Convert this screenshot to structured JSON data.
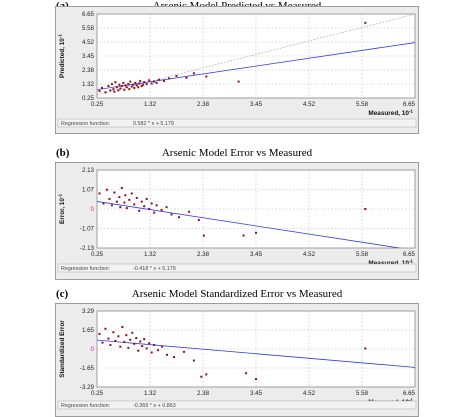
{
  "chart_data": [
    {
      "type": "scatter",
      "letter": "(a)",
      "title": "Arsenic Model Predicted vs Measured",
      "xlabel": "Measured, 10",
      "xlabel_exp": "-1",
      "ylabel": "Predicted, 10",
      "ylabel_exp": "-1",
      "xlim": [
        0.25,
        6.65
      ],
      "ylim": [
        0.0,
        6.65
      ],
      "xticks": [
        "0.25",
        "1.32",
        "2.38",
        "3.45",
        "4.52",
        "5.58",
        "6.65"
      ],
      "yticks": [
        "6.65",
        "5.58",
        "4.52",
        "3.45",
        "2.38",
        "1.32",
        "0.25"
      ],
      "regression_label": "Regression function:",
      "regression_formula": "0.582 * x + 5.179",
      "fit": {
        "slope": 0.582,
        "intercept": 0.518
      },
      "reference_line": true,
      "grid": true,
      "x": [
        0.3,
        0.35,
        0.42,
        0.48,
        0.52,
        0.55,
        0.58,
        0.6,
        0.62,
        0.65,
        0.68,
        0.7,
        0.72,
        0.75,
        0.78,
        0.8,
        0.82,
        0.85,
        0.88,
        0.9,
        0.92,
        0.95,
        0.98,
        1.0,
        1.02,
        1.05,
        1.08,
        1.1,
        1.12,
        1.15,
        1.18,
        1.2,
        1.25,
        1.3,
        1.35,
        1.4,
        1.45,
        1.5,
        1.6,
        1.7,
        1.85,
        2.05,
        2.2,
        2.45,
        3.1,
        5.65
      ],
      "y": [
        0.55,
        0.8,
        0.45,
        0.95,
        0.6,
        1.1,
        0.7,
        0.5,
        1.25,
        0.85,
        0.6,
        1.05,
        0.75,
        0.95,
        1.2,
        0.65,
        1.0,
        0.85,
        1.1,
        0.7,
        1.3,
        0.9,
        1.05,
        0.8,
        1.2,
        1.0,
        0.85,
        1.15,
        1.35,
        0.95,
        1.05,
        1.25,
        1.1,
        1.4,
        1.15,
        1.3,
        1.2,
        1.45,
        1.35,
        1.55,
        1.75,
        1.6,
        1.95,
        1.7,
        1.3,
        5.95
      ]
    },
    {
      "type": "scatter",
      "letter": "(b)",
      "title": "Arsenic Model Error vs Measured",
      "xlabel": "Measured, 10",
      "xlabel_exp": "-1",
      "ylabel": "Error, 10",
      "ylabel_exp": "-1",
      "xlim": [
        0.25,
        6.65
      ],
      "ylim": [
        -2.13,
        2.13
      ],
      "xticks": [
        "0.25",
        "1.32",
        "2.38",
        "3.45",
        "4.52",
        "5.58",
        "6.65"
      ],
      "yticks": [
        "2.13",
        "1.07",
        "0",
        "-1.07",
        "-2.13"
      ],
      "zero_label": "0",
      "regression_label": "Regression function:",
      "regression_formula": "-0.418 * x + 5.179",
      "fit": {
        "slope": -0.418,
        "intercept": 0.518
      },
      "grid": true,
      "x": [
        0.3,
        0.38,
        0.45,
        0.5,
        0.55,
        0.6,
        0.65,
        0.7,
        0.72,
        0.75,
        0.8,
        0.82,
        0.85,
        0.9,
        0.95,
        1.0,
        1.05,
        1.1,
        1.15,
        1.2,
        1.25,
        1.3,
        1.35,
        1.4,
        1.45,
        1.55,
        1.65,
        1.75,
        1.9,
        2.1,
        2.3,
        2.4,
        3.2,
        3.45,
        5.65
      ],
      "y": [
        0.85,
        0.3,
        1.05,
        0.55,
        0.2,
        0.9,
        0.4,
        0.65,
        0.1,
        1.15,
        0.35,
        0.75,
        0.05,
        0.5,
        0.85,
        0.25,
        0.6,
        -0.1,
        0.4,
        0.15,
        0.55,
        0.0,
        0.3,
        -0.2,
        0.2,
        -0.05,
        0.1,
        -0.3,
        -0.45,
        -0.15,
        -0.6,
        -1.45,
        -1.45,
        -1.3,
        0.0
      ]
    },
    {
      "type": "scatter",
      "letter": "(c)",
      "title": "Arsenic Model Standardized Error vs Measured",
      "xlabel": "Measured, 10",
      "xlabel_exp": "-1",
      "ylabel": "Standardized Error",
      "ylabel_exp": "",
      "xlim": [
        0.25,
        6.65
      ],
      "ylim": [
        -3.29,
        3.29
      ],
      "xticks": [
        "0.25",
        "1.32",
        "2.38",
        "3.45",
        "4.52",
        "5.58",
        "6.65"
      ],
      "yticks": [
        "3.29",
        "1.65",
        "0",
        "-1.65",
        "-3.29"
      ],
      "zero_label": "0",
      "regression_label": "Regression function:",
      "regression_formula": "-0.369 * x + 0.863",
      "fit": {
        "slope": -0.369,
        "intercept": 0.863
      },
      "grid": true,
      "x": [
        0.3,
        0.36,
        0.42,
        0.48,
        0.52,
        0.58,
        0.62,
        0.68,
        0.72,
        0.76,
        0.8,
        0.84,
        0.88,
        0.92,
        0.96,
        1.0,
        1.04,
        1.08,
        1.12,
        1.16,
        1.2,
        1.25,
        1.3,
        1.35,
        1.4,
        1.48,
        1.56,
        1.66,
        1.8,
        2.0,
        2.2,
        2.35,
        2.45,
        3.25,
        3.45,
        5.65
      ],
      "y": [
        1.3,
        0.55,
        1.75,
        0.9,
        0.35,
        1.45,
        0.7,
        1.1,
        0.2,
        1.9,
        0.6,
        1.2,
        0.1,
        0.8,
        1.4,
        0.45,
        0.95,
        -0.15,
        0.65,
        0.25,
        0.85,
        0.05,
        0.5,
        -0.3,
        0.35,
        -0.1,
        0.2,
        -0.5,
        -0.7,
        -0.25,
        -1.0,
        -2.4,
        -2.2,
        -2.1,
        -2.6,
        0.05
      ]
    }
  ]
}
